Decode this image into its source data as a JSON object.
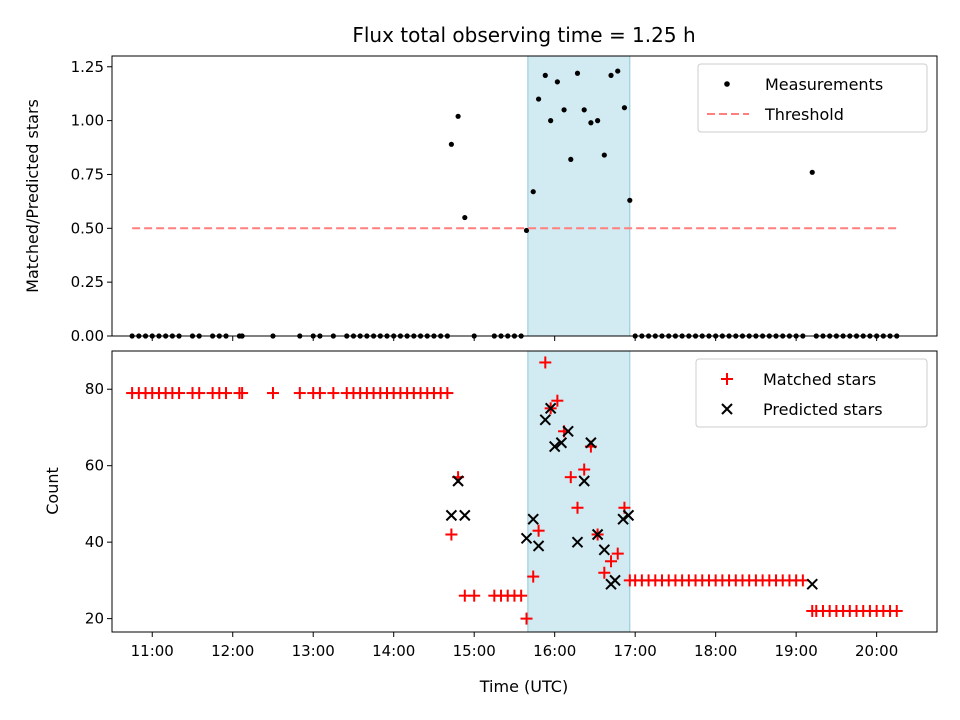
{
  "chart_data": {
    "type": "scatter",
    "title": "Flux total observing time = 1.25 h",
    "shaded_interval": {
      "start": "15:40",
      "end": "16:56",
      "color": "#add8e6"
    },
    "x_ticks": [
      "11:00",
      "12:00",
      "13:00",
      "14:00",
      "15:00",
      "16:00",
      "17:00",
      "18:00",
      "19:00",
      "20:00"
    ],
    "xlabel": "Time (UTC)",
    "panels": [
      {
        "ylabel": "Matched/Predicted stars",
        "ylim": [
          0,
          1.3
        ],
        "yticks": [
          "0.00",
          "0.25",
          "0.50",
          "0.75",
          "1.00",
          "1.25"
        ],
        "legend_position": "top-right",
        "series": [
          {
            "name": "Measurements",
            "marker": "dot",
            "color": "#000000",
            "points": [
              [
                "10:45",
                0
              ],
              [
                "10:50",
                0
              ],
              [
                "10:55",
                0
              ],
              [
                "11:00",
                0
              ],
              [
                "11:05",
                0
              ],
              [
                "11:10",
                0
              ],
              [
                "11:15",
                0
              ],
              [
                "11:20",
                0
              ],
              [
                "11:30",
                0
              ],
              [
                "11:35",
                0
              ],
              [
                "11:45",
                0
              ],
              [
                "11:50",
                0
              ],
              [
                "11:55",
                0
              ],
              [
                "12:05",
                0
              ],
              [
                "12:07",
                0
              ],
              [
                "12:30",
                0
              ],
              [
                "12:50",
                0
              ],
              [
                "13:00",
                0
              ],
              [
                "13:05",
                0
              ],
              [
                "13:15",
                0
              ],
              [
                "13:25",
                0
              ],
              [
                "13:30",
                0
              ],
              [
                "13:35",
                0
              ],
              [
                "13:40",
                0
              ],
              [
                "13:45",
                0
              ],
              [
                "13:50",
                0
              ],
              [
                "13:55",
                0
              ],
              [
                "14:00",
                0
              ],
              [
                "14:05",
                0
              ],
              [
                "14:10",
                0
              ],
              [
                "14:15",
                0
              ],
              [
                "14:20",
                0
              ],
              [
                "14:25",
                0
              ],
              [
                "14:30",
                0
              ],
              [
                "14:35",
                0
              ],
              [
                "14:40",
                0
              ],
              [
                "14:43",
                0.89
              ],
              [
                "14:48",
                1.02
              ],
              [
                "14:53",
                0.55
              ],
              [
                "15:00",
                0
              ],
              [
                "15:15",
                0
              ],
              [
                "15:20",
                0
              ],
              [
                "15:25",
                0
              ],
              [
                "15:30",
                0
              ],
              [
                "15:35",
                0
              ],
              [
                "15:39",
                0.49
              ],
              [
                "15:44",
                0.67
              ],
              [
                "15:48",
                1.1
              ],
              [
                "15:53",
                1.21
              ],
              [
                "15:57",
                1.0
              ],
              [
                "16:02",
                1.18
              ],
              [
                "16:07",
                1.05
              ],
              [
                "16:12",
                0.82
              ],
              [
                "16:17",
                1.22
              ],
              [
                "16:22",
                1.05
              ],
              [
                "16:27",
                0.99
              ],
              [
                "16:32",
                1.0
              ],
              [
                "16:37",
                0.84
              ],
              [
                "16:42",
                1.21
              ],
              [
                "16:47",
                1.23
              ],
              [
                "16:52",
                1.06
              ],
              [
                "16:56",
                0.63
              ],
              [
                "17:00",
                0
              ],
              [
                "17:05",
                0
              ],
              [
                "17:10",
                0
              ],
              [
                "17:15",
                0
              ],
              [
                "17:20",
                0
              ],
              [
                "17:25",
                0
              ],
              [
                "17:30",
                0
              ],
              [
                "17:35",
                0
              ],
              [
                "17:40",
                0
              ],
              [
                "17:45",
                0
              ],
              [
                "17:50",
                0
              ],
              [
                "17:55",
                0
              ],
              [
                "18:00",
                0
              ],
              [
                "18:05",
                0
              ],
              [
                "18:10",
                0
              ],
              [
                "18:15",
                0
              ],
              [
                "18:20",
                0
              ],
              [
                "18:25",
                0
              ],
              [
                "18:30",
                0
              ],
              [
                "18:35",
                0
              ],
              [
                "18:40",
                0
              ],
              [
                "18:45",
                0
              ],
              [
                "18:50",
                0
              ],
              [
                "18:55",
                0
              ],
              [
                "19:00",
                0
              ],
              [
                "19:05",
                0
              ],
              [
                "19:12",
                0.76
              ],
              [
                "19:15",
                0
              ],
              [
                "19:20",
                0
              ],
              [
                "19:25",
                0
              ],
              [
                "19:30",
                0
              ],
              [
                "19:35",
                0
              ],
              [
                "19:40",
                0
              ],
              [
                "19:45",
                0
              ],
              [
                "19:50",
                0
              ],
              [
                "19:55",
                0
              ],
              [
                "20:00",
                0
              ],
              [
                "20:05",
                0
              ],
              [
                "20:10",
                0
              ],
              [
                "20:15",
                0
              ]
            ]
          },
          {
            "name": "Threshold",
            "marker": "dashed-line",
            "color": "#ff7f7f",
            "points": [
              [
                "10:45",
                0.5
              ],
              [
                "20:15",
                0.5
              ]
            ]
          }
        ]
      },
      {
        "ylabel": "Count",
        "ylim": [
          16.5,
          90
        ],
        "yticks": [
          "20",
          "40",
          "60",
          "80"
        ],
        "legend_position": "top-right",
        "series": [
          {
            "name": "Matched stars",
            "marker": "plus",
            "color": "#ff0000",
            "points": [
              [
                "10:45",
                79
              ],
              [
                "10:50",
                79
              ],
              [
                "10:55",
                79
              ],
              [
                "11:00",
                79
              ],
              [
                "11:05",
                79
              ],
              [
                "11:10",
                79
              ],
              [
                "11:15",
                79
              ],
              [
                "11:20",
                79
              ],
              [
                "11:30",
                79
              ],
              [
                "11:35",
                79
              ],
              [
                "11:45",
                79
              ],
              [
                "11:50",
                79
              ],
              [
                "11:55",
                79
              ],
              [
                "12:05",
                79
              ],
              [
                "12:07",
                79
              ],
              [
                "12:30",
                79
              ],
              [
                "12:50",
                79
              ],
              [
                "13:00",
                79
              ],
              [
                "13:05",
                79
              ],
              [
                "13:15",
                79
              ],
              [
                "13:25",
                79
              ],
              [
                "13:30",
                79
              ],
              [
                "13:35",
                79
              ],
              [
                "13:40",
                79
              ],
              [
                "13:45",
                79
              ],
              [
                "13:50",
                79
              ],
              [
                "13:55",
                79
              ],
              [
                "14:00",
                79
              ],
              [
                "14:05",
                79
              ],
              [
                "14:10",
                79
              ],
              [
                "14:15",
                79
              ],
              [
                "14:20",
                79
              ],
              [
                "14:25",
                79
              ],
              [
                "14:30",
                79
              ],
              [
                "14:35",
                79
              ],
              [
                "14:40",
                79
              ],
              [
                "14:43",
                42
              ],
              [
                "14:48",
                57
              ],
              [
                "14:53",
                26
              ],
              [
                "15:00",
                26
              ],
              [
                "15:15",
                26
              ],
              [
                "15:20",
                26
              ],
              [
                "15:25",
                26
              ],
              [
                "15:30",
                26
              ],
              [
                "15:35",
                26
              ],
              [
                "15:39",
                20
              ],
              [
                "15:44",
                31
              ],
              [
                "15:48",
                43
              ],
              [
                "15:53",
                87
              ],
              [
                "15:57",
                75
              ],
              [
                "16:02",
                77
              ],
              [
                "16:07",
                69
              ],
              [
                "16:12",
                57
              ],
              [
                "16:17",
                49
              ],
              [
                "16:22",
                59
              ],
              [
                "16:27",
                65
              ],
              [
                "16:32",
                42
              ],
              [
                "16:37",
                32
              ],
              [
                "16:42",
                35
              ],
              [
                "16:47",
                37
              ],
              [
                "16:52",
                49
              ],
              [
                "16:56",
                30
              ],
              [
                "17:00",
                30
              ],
              [
                "17:05",
                30
              ],
              [
                "17:10",
                30
              ],
              [
                "17:15",
                30
              ],
              [
                "17:20",
                30
              ],
              [
                "17:25",
                30
              ],
              [
                "17:30",
                30
              ],
              [
                "17:35",
                30
              ],
              [
                "17:40",
                30
              ],
              [
                "17:45",
                30
              ],
              [
                "17:50",
                30
              ],
              [
                "17:55",
                30
              ],
              [
                "18:00",
                30
              ],
              [
                "18:05",
                30
              ],
              [
                "18:10",
                30
              ],
              [
                "18:15",
                30
              ],
              [
                "18:20",
                30
              ],
              [
                "18:25",
                30
              ],
              [
                "18:30",
                30
              ],
              [
                "18:35",
                30
              ],
              [
                "18:40",
                30
              ],
              [
                "18:45",
                30
              ],
              [
                "18:50",
                30
              ],
              [
                "18:55",
                30
              ],
              [
                "19:00",
                30
              ],
              [
                "19:05",
                30
              ],
              [
                "19:12",
                22
              ],
              [
                "19:15",
                22
              ],
              [
                "19:20",
                22
              ],
              [
                "19:25",
                22
              ],
              [
                "19:30",
                22
              ],
              [
                "19:35",
                22
              ],
              [
                "19:40",
                22
              ],
              [
                "19:45",
                22
              ],
              [
                "19:50",
                22
              ],
              [
                "19:55",
                22
              ],
              [
                "20:00",
                22
              ],
              [
                "20:05",
                22
              ],
              [
                "20:10",
                22
              ],
              [
                "20:15",
                22
              ]
            ]
          },
          {
            "name": "Predicted stars",
            "marker": "cross",
            "color": "#000000",
            "points": [
              [
                "14:43",
                47
              ],
              [
                "14:48",
                56
              ],
              [
                "14:53",
                47
              ],
              [
                "15:39",
                41
              ],
              [
                "15:44",
                46
              ],
              [
                "15:48",
                39
              ],
              [
                "15:53",
                72
              ],
              [
                "15:57",
                75
              ],
              [
                "16:00",
                65
              ],
              [
                "16:05",
                66
              ],
              [
                "16:10",
                69
              ],
              [
                "16:17",
                40
              ],
              [
                "16:22",
                56
              ],
              [
                "16:27",
                66
              ],
              [
                "16:32",
                42
              ],
              [
                "16:37",
                38
              ],
              [
                "16:42",
                29
              ],
              [
                "16:45",
                30
              ],
              [
                "16:51",
                46
              ],
              [
                "16:55",
                47
              ],
              [
                "19:12",
                29
              ]
            ]
          }
        ]
      }
    ]
  }
}
